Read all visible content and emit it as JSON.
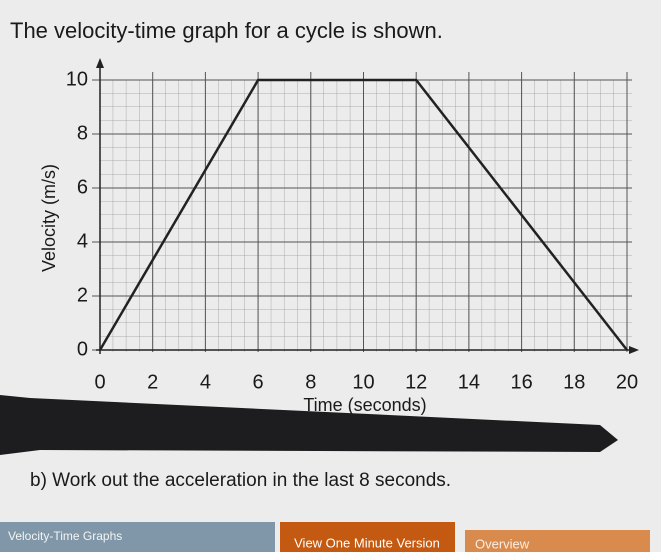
{
  "heading": "The velocity-time graph for a cycle is shown.",
  "chart_data": {
    "type": "line",
    "x_label": "Time (seconds)",
    "y_label": "Velocity (m/s)",
    "x": [
      0,
      6,
      12,
      20
    ],
    "values": [
      0,
      10,
      10,
      0
    ],
    "color": "#222222",
    "xlim": [
      0,
      20
    ],
    "ylim": [
      0,
      10
    ],
    "xticks": [
      0,
      2,
      4,
      6,
      8,
      10,
      12,
      14,
      16,
      18,
      20
    ],
    "yticks": [
      0,
      2,
      4,
      6,
      8,
      10
    ],
    "grid": true
  },
  "question": "b) Work out the acceleration in the last 8 seconds.",
  "footer": {
    "topic": "Velocity-Time Graphs",
    "button": "View One Minute Version",
    "tab": "Overview"
  }
}
